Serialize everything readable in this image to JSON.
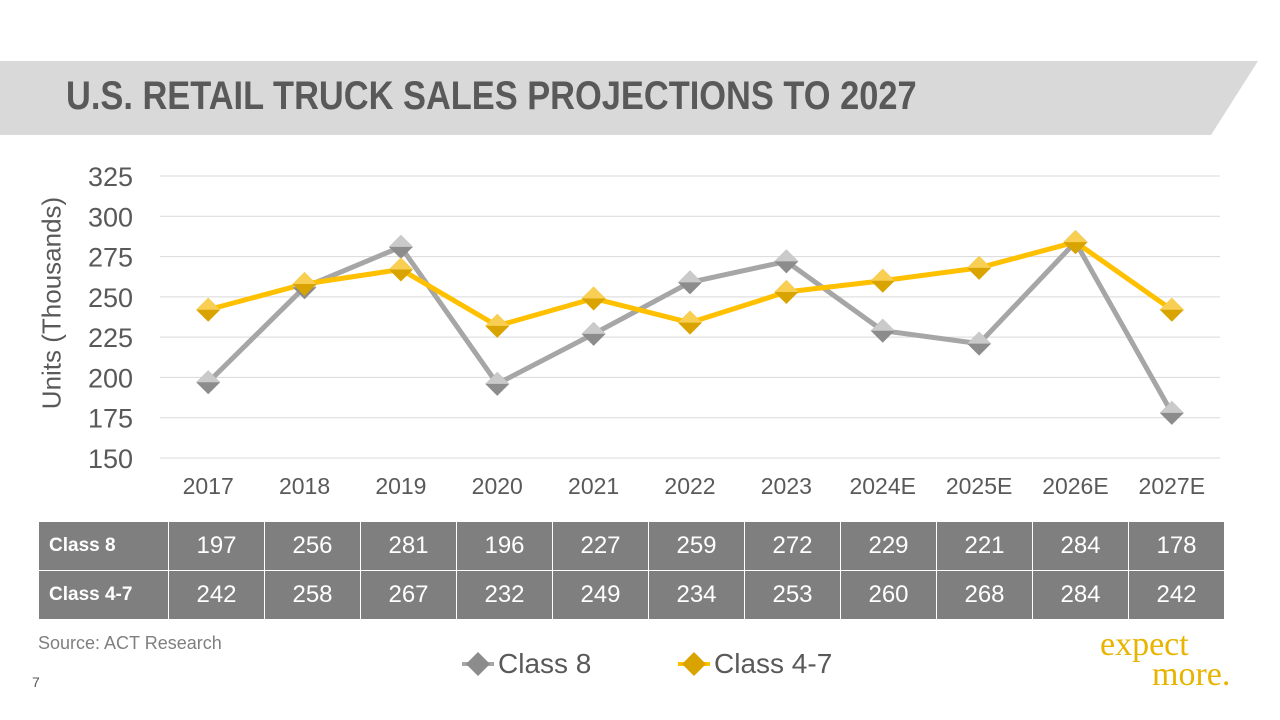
{
  "title": "U.S. RETAIL TRUCK SALES PROJECTIONS TO 2027",
  "colors": {
    "title_band": "#d9d9d9",
    "class8": "#a6a6a6",
    "class47": "#ffc000",
    "table_bg": "#7f7f7f",
    "brand": "#e8b400"
  },
  "chart_data": {
    "type": "line",
    "categories": [
      "2017",
      "2018",
      "2019",
      "2020",
      "2021",
      "2022",
      "2023",
      "2024E",
      "2025E",
      "2026E",
      "2027E"
    ],
    "series": [
      {
        "name": "Class 8",
        "values": [
          197,
          256,
          281,
          196,
          227,
          259,
          272,
          229,
          221,
          284,
          178
        ]
      },
      {
        "name": "Class 4-7",
        "values": [
          242,
          258,
          267,
          232,
          249,
          234,
          253,
          260,
          268,
          284,
          242
        ]
      }
    ],
    "ylabel": "Units (Thousands)",
    "ylim": [
      150,
      325
    ],
    "yticks": [
      150,
      175,
      200,
      225,
      250,
      275,
      300,
      325
    ],
    "grid": true,
    "legend": "bottom"
  },
  "table": {
    "rows": [
      {
        "label": "Class 8",
        "values": [
          "197",
          "256",
          "281",
          "196",
          "227",
          "259",
          "272",
          "229",
          "221",
          "284",
          "178"
        ]
      },
      {
        "label": "Class 4-7",
        "values": [
          "242",
          "258",
          "267",
          "232",
          "249",
          "234",
          "253",
          "260",
          "268",
          "284",
          "242"
        ]
      }
    ]
  },
  "source": "Source:  ACT Research",
  "page_number": "7",
  "logo": {
    "line1": "expect",
    "line2": "more."
  }
}
